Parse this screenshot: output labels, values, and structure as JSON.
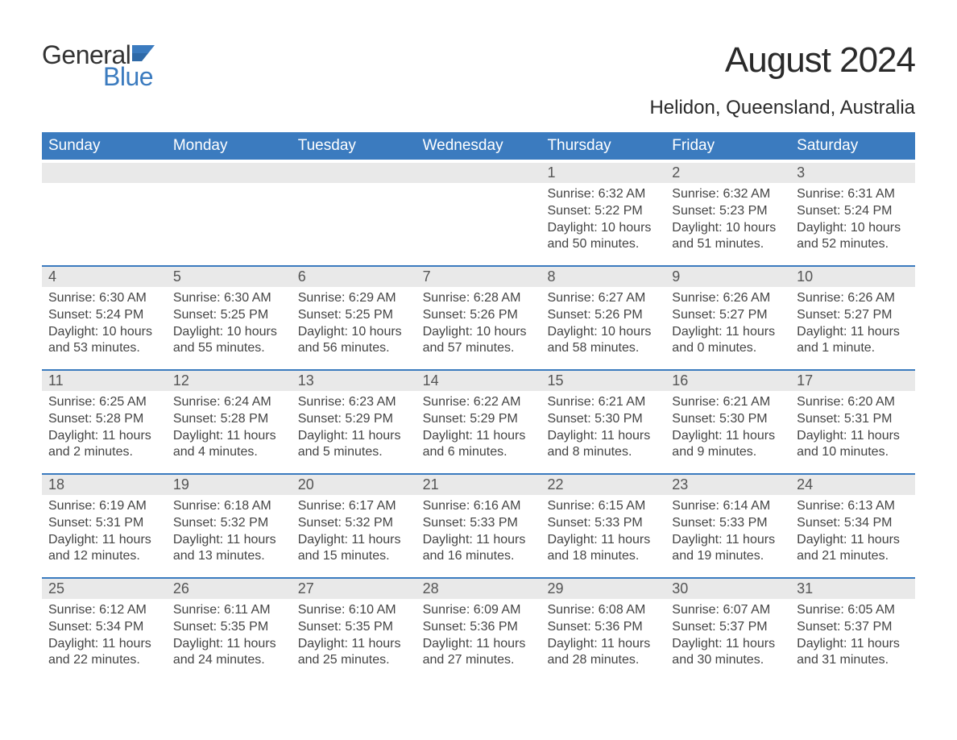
{
  "brand": {
    "general": "General",
    "blue": "Blue",
    "flag_color": "#3b7bbf"
  },
  "title": {
    "month_year": "August 2024",
    "location": "Helidon, Queensland, Australia"
  },
  "colors": {
    "header_bg": "#3b7bbf",
    "header_text": "#ffffff",
    "daynum_bg": "#e9e9e9",
    "daynum_text": "#555555",
    "body_text": "#444444",
    "rule": "#3b7bbf",
    "page_bg": "#ffffff"
  },
  "fontsizes": {
    "title_month": 44,
    "title_location": 24,
    "header_cell": 19,
    "daynum": 18,
    "body": 16,
    "logo": 32
  },
  "calendar": {
    "day_headers": [
      "Sunday",
      "Monday",
      "Tuesday",
      "Wednesday",
      "Thursday",
      "Friday",
      "Saturday"
    ],
    "weeks": [
      [
        {
          "num": "",
          "empty": true
        },
        {
          "num": "",
          "empty": true
        },
        {
          "num": "",
          "empty": true
        },
        {
          "num": "",
          "empty": true
        },
        {
          "num": "1",
          "sunrise": "Sunrise: 6:32 AM",
          "sunset": "Sunset: 5:22 PM",
          "daylight": "Daylight: 10 hours and 50 minutes."
        },
        {
          "num": "2",
          "sunrise": "Sunrise: 6:32 AM",
          "sunset": "Sunset: 5:23 PM",
          "daylight": "Daylight: 10 hours and 51 minutes."
        },
        {
          "num": "3",
          "sunrise": "Sunrise: 6:31 AM",
          "sunset": "Sunset: 5:24 PM",
          "daylight": "Daylight: 10 hours and 52 minutes."
        }
      ],
      [
        {
          "num": "4",
          "sunrise": "Sunrise: 6:30 AM",
          "sunset": "Sunset: 5:24 PM",
          "daylight": "Daylight: 10 hours and 53 minutes."
        },
        {
          "num": "5",
          "sunrise": "Sunrise: 6:30 AM",
          "sunset": "Sunset: 5:25 PM",
          "daylight": "Daylight: 10 hours and 55 minutes."
        },
        {
          "num": "6",
          "sunrise": "Sunrise: 6:29 AM",
          "sunset": "Sunset: 5:25 PM",
          "daylight": "Daylight: 10 hours and 56 minutes."
        },
        {
          "num": "7",
          "sunrise": "Sunrise: 6:28 AM",
          "sunset": "Sunset: 5:26 PM",
          "daylight": "Daylight: 10 hours and 57 minutes."
        },
        {
          "num": "8",
          "sunrise": "Sunrise: 6:27 AM",
          "sunset": "Sunset: 5:26 PM",
          "daylight": "Daylight: 10 hours and 58 minutes."
        },
        {
          "num": "9",
          "sunrise": "Sunrise: 6:26 AM",
          "sunset": "Sunset: 5:27 PM",
          "daylight": "Daylight: 11 hours and 0 minutes."
        },
        {
          "num": "10",
          "sunrise": "Sunrise: 6:26 AM",
          "sunset": "Sunset: 5:27 PM",
          "daylight": "Daylight: 11 hours and 1 minute."
        }
      ],
      [
        {
          "num": "11",
          "sunrise": "Sunrise: 6:25 AM",
          "sunset": "Sunset: 5:28 PM",
          "daylight": "Daylight: 11 hours and 2 minutes."
        },
        {
          "num": "12",
          "sunrise": "Sunrise: 6:24 AM",
          "sunset": "Sunset: 5:28 PM",
          "daylight": "Daylight: 11 hours and 4 minutes."
        },
        {
          "num": "13",
          "sunrise": "Sunrise: 6:23 AM",
          "sunset": "Sunset: 5:29 PM",
          "daylight": "Daylight: 11 hours and 5 minutes."
        },
        {
          "num": "14",
          "sunrise": "Sunrise: 6:22 AM",
          "sunset": "Sunset: 5:29 PM",
          "daylight": "Daylight: 11 hours and 6 minutes."
        },
        {
          "num": "15",
          "sunrise": "Sunrise: 6:21 AM",
          "sunset": "Sunset: 5:30 PM",
          "daylight": "Daylight: 11 hours and 8 minutes."
        },
        {
          "num": "16",
          "sunrise": "Sunrise: 6:21 AM",
          "sunset": "Sunset: 5:30 PM",
          "daylight": "Daylight: 11 hours and 9 minutes."
        },
        {
          "num": "17",
          "sunrise": "Sunrise: 6:20 AM",
          "sunset": "Sunset: 5:31 PM",
          "daylight": "Daylight: 11 hours and 10 minutes."
        }
      ],
      [
        {
          "num": "18",
          "sunrise": "Sunrise: 6:19 AM",
          "sunset": "Sunset: 5:31 PM",
          "daylight": "Daylight: 11 hours and 12 minutes."
        },
        {
          "num": "19",
          "sunrise": "Sunrise: 6:18 AM",
          "sunset": "Sunset: 5:32 PM",
          "daylight": "Daylight: 11 hours and 13 minutes."
        },
        {
          "num": "20",
          "sunrise": "Sunrise: 6:17 AM",
          "sunset": "Sunset: 5:32 PM",
          "daylight": "Daylight: 11 hours and 15 minutes."
        },
        {
          "num": "21",
          "sunrise": "Sunrise: 6:16 AM",
          "sunset": "Sunset: 5:33 PM",
          "daylight": "Daylight: 11 hours and 16 minutes."
        },
        {
          "num": "22",
          "sunrise": "Sunrise: 6:15 AM",
          "sunset": "Sunset: 5:33 PM",
          "daylight": "Daylight: 11 hours and 18 minutes."
        },
        {
          "num": "23",
          "sunrise": "Sunrise: 6:14 AM",
          "sunset": "Sunset: 5:33 PM",
          "daylight": "Daylight: 11 hours and 19 minutes."
        },
        {
          "num": "24",
          "sunrise": "Sunrise: 6:13 AM",
          "sunset": "Sunset: 5:34 PM",
          "daylight": "Daylight: 11 hours and 21 minutes."
        }
      ],
      [
        {
          "num": "25",
          "sunrise": "Sunrise: 6:12 AM",
          "sunset": "Sunset: 5:34 PM",
          "daylight": "Daylight: 11 hours and 22 minutes."
        },
        {
          "num": "26",
          "sunrise": "Sunrise: 6:11 AM",
          "sunset": "Sunset: 5:35 PM",
          "daylight": "Daylight: 11 hours and 24 minutes."
        },
        {
          "num": "27",
          "sunrise": "Sunrise: 6:10 AM",
          "sunset": "Sunset: 5:35 PM",
          "daylight": "Daylight: 11 hours and 25 minutes."
        },
        {
          "num": "28",
          "sunrise": "Sunrise: 6:09 AM",
          "sunset": "Sunset: 5:36 PM",
          "daylight": "Daylight: 11 hours and 27 minutes."
        },
        {
          "num": "29",
          "sunrise": "Sunrise: 6:08 AM",
          "sunset": "Sunset: 5:36 PM",
          "daylight": "Daylight: 11 hours and 28 minutes."
        },
        {
          "num": "30",
          "sunrise": "Sunrise: 6:07 AM",
          "sunset": "Sunset: 5:37 PM",
          "daylight": "Daylight: 11 hours and 30 minutes."
        },
        {
          "num": "31",
          "sunrise": "Sunrise: 6:05 AM",
          "sunset": "Sunset: 5:37 PM",
          "daylight": "Daylight: 11 hours and 31 minutes."
        }
      ]
    ]
  }
}
